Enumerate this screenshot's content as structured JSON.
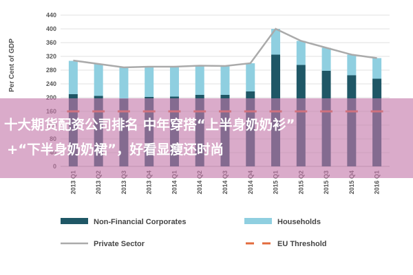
{
  "chart_data": {
    "type": "bar",
    "stacked": true,
    "categories": [
      "2013 Q1",
      "2013 Q2",
      "2013 Q3",
      "2013 Q4",
      "2014 Q1",
      "2014 Q2",
      "2014 Q3",
      "2014 Q4",
      "2015 Q1",
      "2015 Q2",
      "2015 Q3",
      "2015 Q4",
      "2016 Q1"
    ],
    "series": [
      {
        "name": "Non-Financial Corporates",
        "kind": "bar",
        "color": "#1f5766",
        "values": [
          210,
          205,
          197,
          202,
          203,
          208,
          208,
          218,
          325,
          295,
          278,
          265,
          255
        ]
      },
      {
        "name": "Households",
        "kind": "bar",
        "color": "#8fcfe0",
        "values": [
          97,
          93,
          90,
          88,
          87,
          85,
          84,
          82,
          75,
          70,
          67,
          60,
          60
        ]
      },
      {
        "name": "Private Sector",
        "kind": "line",
        "color": "#aaaaaa",
        "values": [
          308,
          298,
          288,
          290,
          290,
          293,
          292,
          300,
          400,
          365,
          345,
          325,
          315
        ]
      },
      {
        "name": "EU Threshold",
        "kind": "dashed-line",
        "color": "#e26b3c",
        "values": [
          160,
          160,
          160,
          160,
          160,
          160,
          160,
          160,
          160,
          160,
          160,
          160,
          160
        ]
      }
    ],
    "ylabel": "Per Cent of GDP",
    "ylim": [
      0,
      440
    ],
    "yticks": [
      "0",
      "40",
      "80",
      "120",
      "160",
      "200",
      "240",
      "280",
      "320",
      "360",
      "400",
      "440"
    ],
    "grid": true,
    "legend_position": "bottom"
  },
  "overlay": {
    "line1": "十大期货配资公司排名 中年穿搭“上半身奶奶衫”",
    "line2": "+“下半身奶奶裙”，好看显瘦还时尚"
  }
}
